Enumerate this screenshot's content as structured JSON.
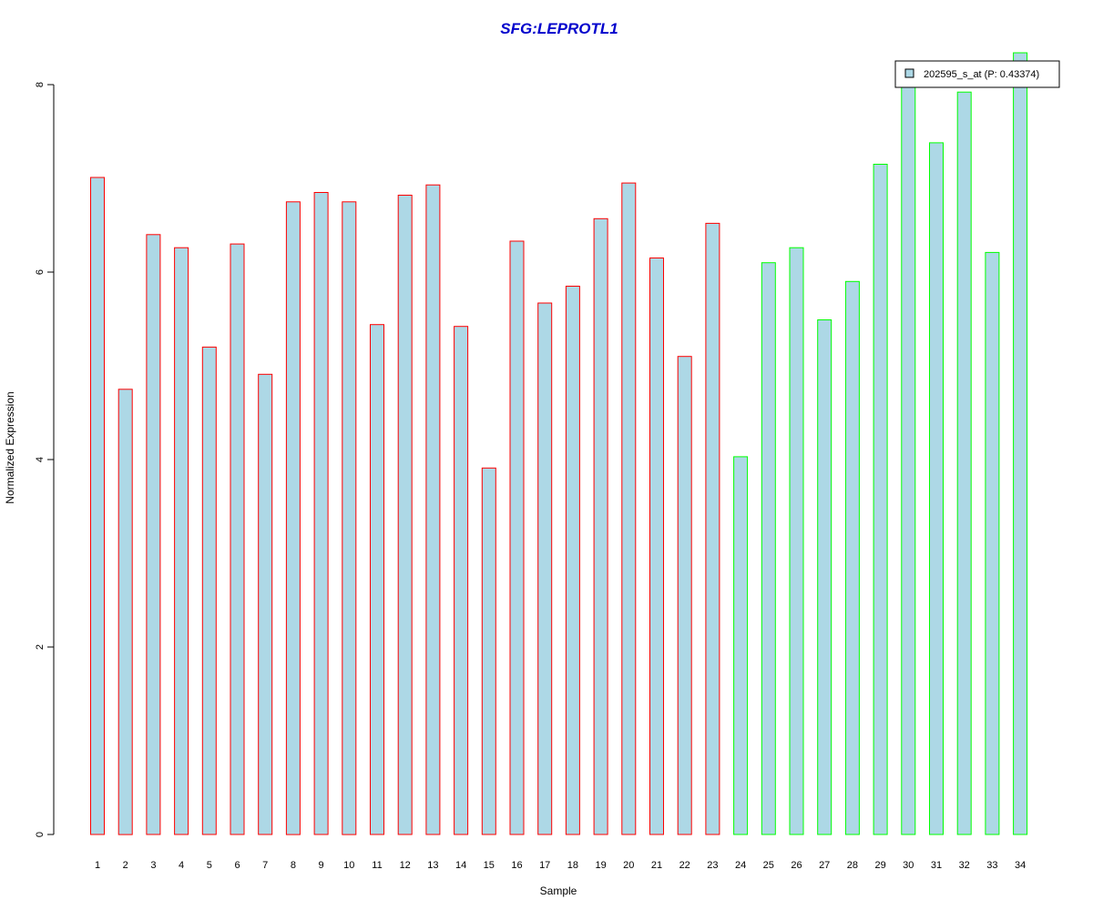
{
  "chart_data": {
    "type": "bar",
    "title": "SFG:LEPROTL1",
    "xlabel": "Sample",
    "ylabel": "Normalized Expression",
    "ylim": [
      0,
      8
    ],
    "yticks": [
      "0",
      "2",
      "4",
      "6",
      "8"
    ],
    "categories": [
      "1",
      "2",
      "3",
      "4",
      "5",
      "6",
      "7",
      "8",
      "9",
      "10",
      "11",
      "12",
      "13",
      "14",
      "15",
      "16",
      "17",
      "18",
      "19",
      "20",
      "21",
      "22",
      "23",
      "24",
      "25",
      "26",
      "27",
      "28",
      "29",
      "30",
      "31",
      "32",
      "33",
      "34"
    ],
    "values": [
      7.01,
      4.75,
      6.4,
      6.26,
      5.2,
      6.3,
      4.91,
      6.75,
      6.85,
      6.75,
      5.44,
      6.82,
      6.93,
      5.42,
      3.91,
      6.33,
      5.67,
      5.85,
      6.57,
      6.95,
      6.15,
      5.1,
      6.52,
      4.03,
      6.1,
      6.26,
      5.49,
      5.9,
      7.15,
      8.1,
      7.38,
      7.92,
      6.21,
      8.34
    ],
    "groups": [
      "red",
      "red",
      "red",
      "red",
      "red",
      "red",
      "red",
      "red",
      "red",
      "red",
      "red",
      "red",
      "red",
      "red",
      "red",
      "red",
      "red",
      "red",
      "red",
      "red",
      "red",
      "red",
      "red",
      "green",
      "green",
      "green",
      "green",
      "green",
      "green",
      "green",
      "green",
      "green",
      "green",
      "green"
    ],
    "legend": {
      "label": "202595_s_at (P: 0.43374)",
      "position": "top-right"
    },
    "grid": false
  },
  "colors": {
    "title": "#0000cc",
    "bar_fill": "#add8e6",
    "group_red": "#ff0000",
    "group_green": "#00ff00",
    "axis": "#000000"
  }
}
